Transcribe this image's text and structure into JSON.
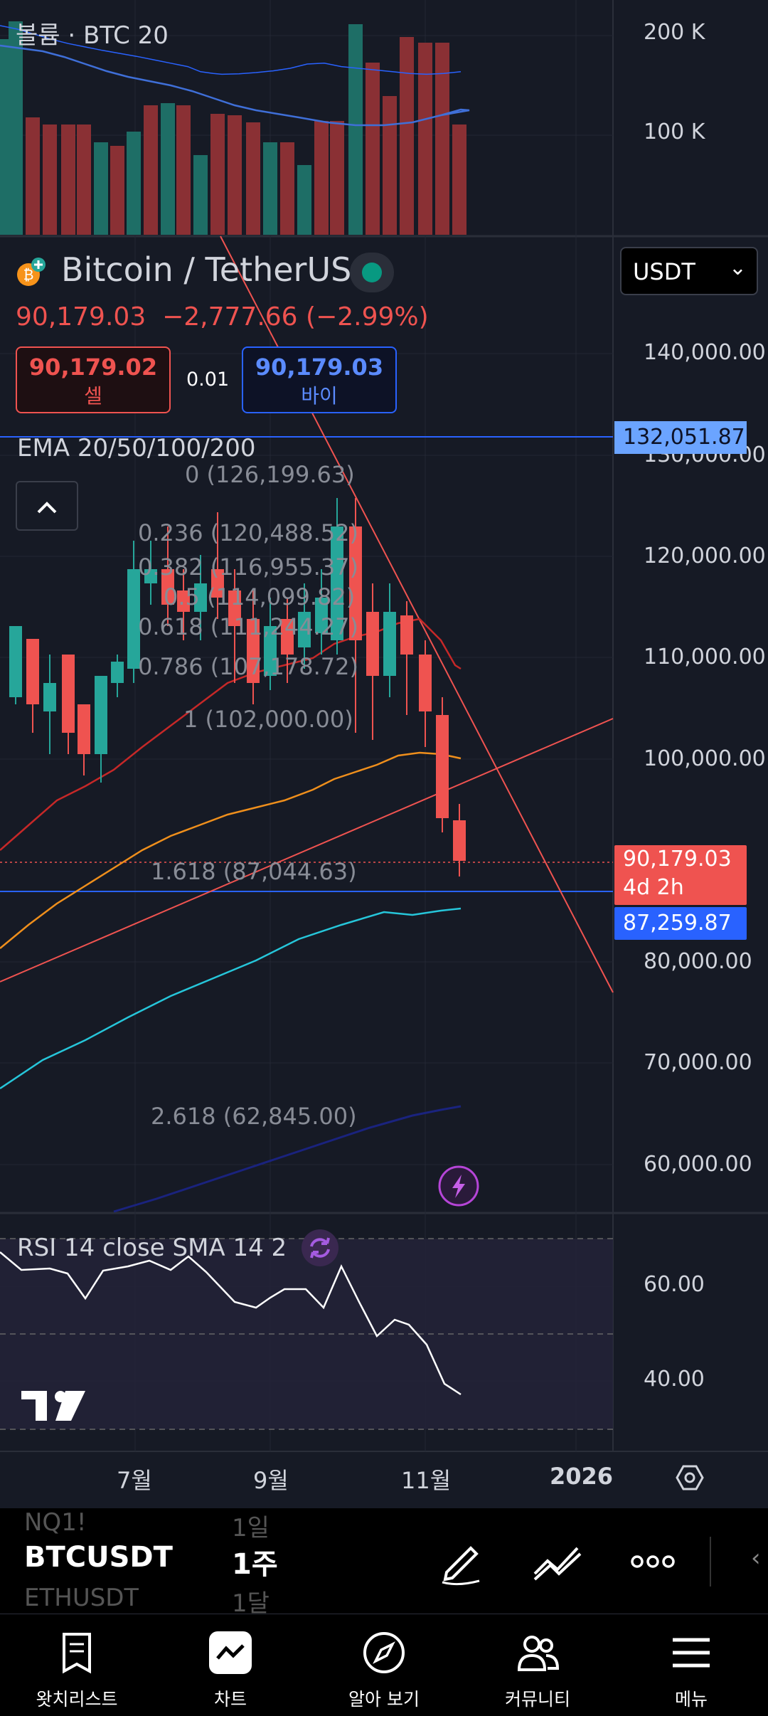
{
  "volume": {
    "label": "볼륨 · BTC 20",
    "axis": [
      "200 K",
      "100 K"
    ]
  },
  "symbol": {
    "name": "Bitcoin / TetherUS",
    "currency": "USDT",
    "price_line": "90,179.03  −2,777.66 (−2.99%)",
    "sell_price": "90,179.02",
    "sell_label": "셀",
    "spread": "0.01",
    "buy_price": "90,179.03",
    "buy_label": "바이"
  },
  "indicators": {
    "ema_label": "EMA 20/50/100/200",
    "rsi_label": "RSI 14 close SMA 14 2"
  },
  "fib": {
    "levels": [
      "0 (126,199.63)",
      "0.236 (120,488.52)",
      "0.382 (116,955.37)",
      "0.5 (114,099.82)",
      "0.618 (111,244.27)",
      "0.786 (107,178.72)",
      "1 (102,000.00)",
      "1.618 (87,044.63)",
      "2.618 (62,845.00)"
    ]
  },
  "price_axis": [
    "140,000.00",
    "130,000.00",
    "120,000.00",
    "110,000.00",
    "100,000.00",
    "80,000.00",
    "70,000.00",
    "60,000.00"
  ],
  "price_tags": {
    "upper_line": "132,051.87",
    "current_price": "90,179.03",
    "countdown": "4d 2h",
    "lower_line": "87,259.87"
  },
  "rsi_axis": [
    "60.00",
    "40.00"
  ],
  "time_axis": [
    "7월",
    "9월",
    "11월",
    "2026"
  ],
  "toolbar": {
    "watch_prev": "NQ1!",
    "watch_current": "BTCUSDT",
    "watch_next": "ETHUSDT",
    "interval_prev": "1일",
    "interval_current": "1주",
    "interval_next": "1달"
  },
  "nav": [
    "왓치리스트",
    "차트",
    "알아 보기",
    "커뮤니티",
    "메뉴"
  ],
  "colors": {
    "up": "#26a69a",
    "down": "#ef5350",
    "accent": "#2962ff",
    "bg": "#161a25"
  }
}
